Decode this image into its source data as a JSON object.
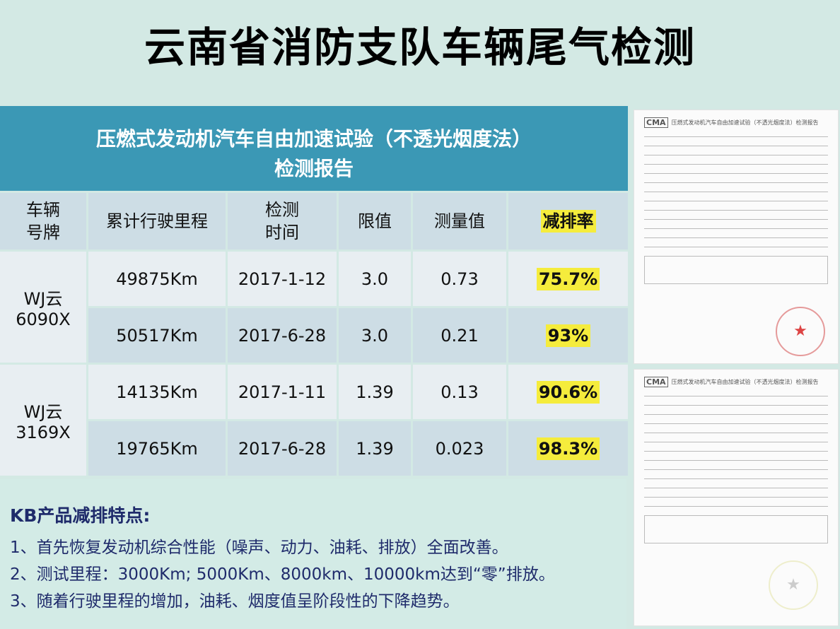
{
  "title": "云南省消防支队车辆尾气检测",
  "banner": {
    "line1": "压燃式发动机汽车自由加速试验（不透光烟度法）",
    "line2": "检测报告"
  },
  "headers": {
    "plate": "车辆号牌",
    "mileage": "累计行驶里程",
    "time": "检测时间",
    "limit": "限值",
    "measured": "测量值",
    "rate": "减排率"
  },
  "vehicles": [
    {
      "plate": "WJ云 6090X",
      "rows": [
        {
          "mileage": "49875Km",
          "time": "2017-1-12",
          "limit": "3.0",
          "measured": "0.73",
          "rate": "75.7%"
        },
        {
          "mileage": "50517Km",
          "time": "2017-6-28",
          "limit": "3.0",
          "measured": "0.21",
          "rate": "93%"
        }
      ]
    },
    {
      "plate": "WJ云 3169X",
      "rows": [
        {
          "mileage": "14135Km",
          "time": "2017-1-11",
          "limit": "1.39",
          "measured": "0.13",
          "rate": "90.6%"
        },
        {
          "mileage": "19765Km",
          "time": "2017-6-28",
          "limit": "1.39",
          "measured": "0.023",
          "rate": "98.3%"
        }
      ]
    }
  ],
  "notes": {
    "heading": "KB产品减排特点:",
    "items": [
      "1、首先恢复发动机综合性能（噪声、动力、油耗、排放）全面改善。",
      "2、测试里程：3000Km; 5000Km、8000km、10000km达到“零”排放。",
      "3、随着行驶里程的增加，油耗、烟度值呈阶段性的下降趋势。"
    ]
  },
  "docs": {
    "logo": "CMA",
    "title": "压燃式发动机汽车自由加速试验（不透光烟度法）检测报告"
  }
}
